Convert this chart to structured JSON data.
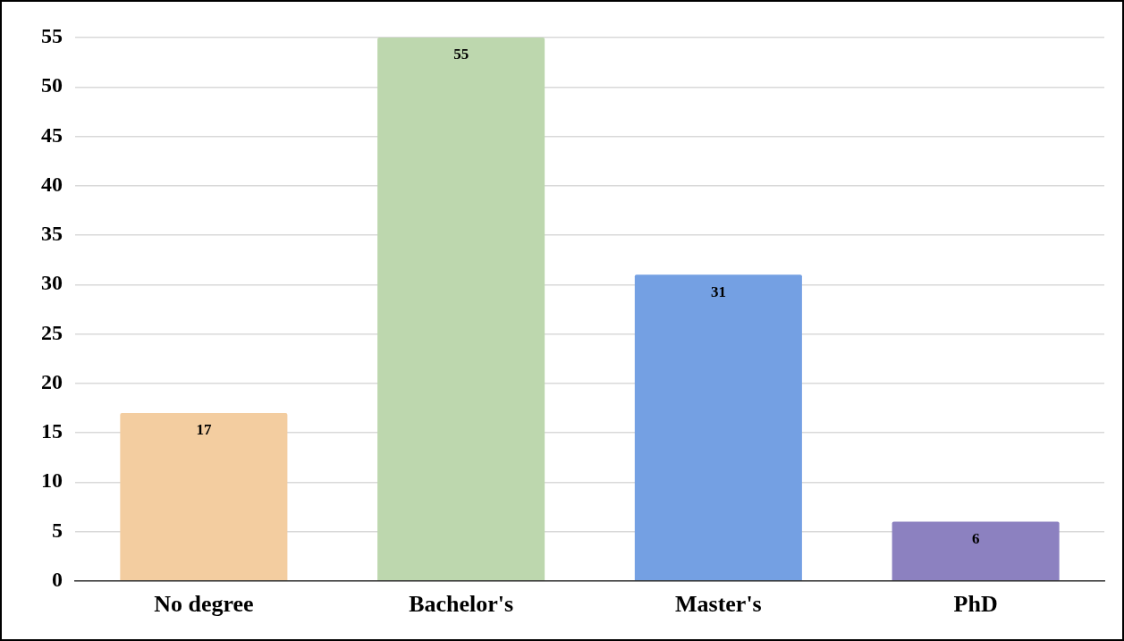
{
  "chart_data": {
    "type": "bar",
    "categories": [
      "No degree",
      "Bachelor's",
      "Master's",
      "PhD"
    ],
    "values": [
      17,
      55,
      31,
      6
    ],
    "colors": [
      "#f3cda0",
      "#bdd7ae",
      "#74a0e3",
      "#8c81c0"
    ],
    "ylim": [
      0,
      55
    ],
    "yticks": [
      0,
      5,
      10,
      15,
      20,
      25,
      30,
      35,
      40,
      45,
      50,
      55
    ],
    "grid": "y",
    "data_labels": true
  }
}
